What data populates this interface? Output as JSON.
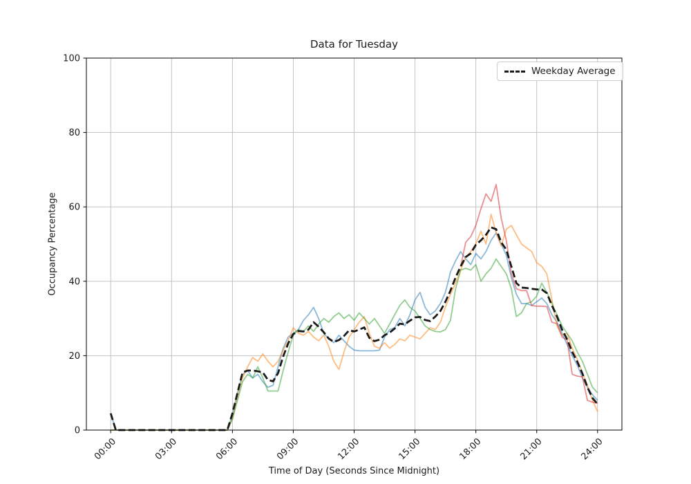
{
  "figure": {
    "background": "#ffffff",
    "grid_color": "#bbbbbb",
    "spine_color": "#000000",
    "text_color": "#1a1a1a"
  },
  "chart_data": {
    "type": "line",
    "title": "Data for Tuesday",
    "xlabel": "Time of Day (Seconds Since Midnight)",
    "ylabel": "Occupancy Percentage",
    "xlim_seconds": [
      -4320,
      90720
    ],
    "ylim": [
      0,
      100
    ],
    "grid": true,
    "x_start_seconds": 0,
    "x_step_seconds": 900,
    "xticks": {
      "seconds": [
        0,
        10800,
        21600,
        32400,
        43200,
        54000,
        64800,
        75600,
        86400
      ],
      "labels": [
        "00:00",
        "03:00",
        "06:00",
        "09:00",
        "12:00",
        "15:00",
        "18:00",
        "21:00",
        "24:00"
      ],
      "rotation_deg": 45
    },
    "yticks": [
      0,
      20,
      40,
      60,
      80,
      100
    ],
    "legend": {
      "position": "upper right",
      "entries": [
        {
          "label": "Weekday Average",
          "style": "dashed",
          "color": "#1a1a1a"
        }
      ]
    },
    "series": [
      {
        "name": "weekday-line-1",
        "color": "#1f77b4",
        "opacity": 0.52,
        "width": 1.8,
        "dash": null,
        "values": [
          4.5,
          0,
          0,
          0,
          0,
          0,
          0,
          0,
          0,
          0,
          0,
          0,
          0,
          0,
          0,
          0,
          0,
          0,
          0,
          0,
          0,
          0,
          0,
          0,
          4,
          10,
          15,
          16,
          14,
          15,
          13,
          11.5,
          12,
          17,
          22,
          25,
          26,
          27,
          29.5,
          31,
          33,
          30,
          26,
          24.5,
          23.5,
          25.5,
          24,
          22.5,
          21.5,
          21.3,
          21.3,
          21.3,
          21.3,
          21.5,
          25,
          27,
          27.5,
          30,
          28,
          31,
          35,
          37,
          33,
          31,
          32,
          34,
          37,
          42.5,
          45.5,
          48,
          46,
          44.5,
          47.5,
          46,
          48,
          51,
          53,
          50,
          47,
          41,
          36.5,
          34,
          34,
          33.5,
          34.5,
          35.5,
          34,
          31,
          29,
          26,
          23,
          20,
          17.5,
          14,
          11.5,
          9.5,
          8
        ]
      },
      {
        "name": "weekday-line-2",
        "color": "#ff7f0e",
        "opacity": 0.52,
        "width": 1.8,
        "dash": null,
        "values": [
          0,
          0,
          0,
          0,
          0,
          0,
          0,
          0,
          0,
          0,
          0,
          0,
          0,
          0,
          0,
          0,
          0,
          0,
          0,
          0,
          0,
          0,
          0,
          0,
          3,
          9,
          14,
          17,
          19.5,
          18.5,
          20.5,
          18.5,
          17,
          18.5,
          21.5,
          24,
          27.5,
          26,
          25.5,
          26.5,
          25,
          24,
          25.5,
          22.5,
          18.5,
          16.3,
          21,
          25,
          27,
          29,
          30.5,
          26,
          22.5,
          22,
          23.5,
          22,
          23,
          24.5,
          24,
          25.5,
          25,
          24.5,
          26,
          27.5,
          27,
          29,
          33,
          36.5,
          39.5,
          43,
          46.5,
          48,
          50,
          53.5,
          50,
          58,
          53,
          49.5,
          54,
          55,
          52.5,
          50,
          49,
          48,
          45,
          44,
          42,
          35,
          28,
          25.5,
          26,
          22,
          19,
          15.5,
          12,
          8,
          5
        ]
      },
      {
        "name": "weekday-line-3",
        "color": "#2ca02c",
        "opacity": 0.52,
        "width": 1.8,
        "dash": null,
        "values": [
          0,
          0,
          0,
          0,
          0,
          0,
          0,
          0,
          0,
          0,
          0,
          0,
          0,
          0,
          0,
          0,
          0,
          0,
          0,
          0,
          0,
          0,
          0,
          0,
          3,
          8,
          13,
          15,
          14,
          17,
          14,
          10.5,
          10.5,
          10.5,
          16,
          21,
          25.5,
          27,
          26.5,
          28,
          26.5,
          28.5,
          30,
          29,
          30.5,
          31.5,
          30,
          31,
          29.5,
          31.5,
          30,
          28.5,
          30,
          28,
          26,
          28.5,
          31,
          33.5,
          35,
          33,
          32,
          30,
          28,
          27,
          26.5,
          26.4,
          27,
          29.5,
          38,
          43,
          43.5,
          43,
          44.5,
          40,
          42,
          43.5,
          46,
          44,
          42,
          38,
          30.5,
          31.5,
          34,
          34.5,
          36,
          39.5,
          37,
          34,
          31,
          28,
          26,
          24,
          21,
          18.5,
          15,
          11.5,
          10
        ]
      },
      {
        "name": "weekday-line-4",
        "color": "#d62728",
        "opacity": 0.52,
        "width": 1.8,
        "dash": null,
        "values": [
          null,
          null,
          null,
          null,
          null,
          null,
          null,
          null,
          null,
          null,
          null,
          null,
          null,
          null,
          null,
          null,
          null,
          null,
          null,
          null,
          null,
          null,
          null,
          null,
          null,
          null,
          null,
          null,
          null,
          null,
          null,
          null,
          null,
          null,
          null,
          null,
          null,
          null,
          null,
          null,
          null,
          null,
          null,
          null,
          null,
          null,
          null,
          null,
          null,
          null,
          null,
          null,
          null,
          null,
          null,
          null,
          null,
          null,
          null,
          null,
          null,
          null,
          null,
          null,
          null,
          null,
          null,
          null,
          null,
          44,
          50.5,
          52,
          55,
          59.5,
          63.5,
          61.5,
          66,
          57,
          51,
          42,
          38,
          37.5,
          37.5,
          33.5,
          33.3,
          33.3,
          33.2,
          29,
          28.6,
          25,
          24.2,
          15,
          14.5,
          14.3,
          8,
          7.5,
          7.2
        ]
      },
      {
        "name": "Weekday Average",
        "color": "#1a1a1a",
        "opacity": 1,
        "width": 2.8,
        "dash": "10 4.5",
        "values": [
          4.5,
          0,
          0,
          0,
          0,
          0,
          0,
          0,
          0,
          0,
          0,
          0,
          0,
          0,
          0,
          0,
          0,
          0,
          0,
          0,
          0,
          0,
          0,
          0,
          4.5,
          10,
          15.5,
          16,
          16,
          15.8,
          15.5,
          13.5,
          13.1,
          15.3,
          19.8,
          23.3,
          25.8,
          26.6,
          26.5,
          27,
          29,
          27.8,
          26.3,
          24.6,
          23.7,
          24.2,
          25.3,
          26.8,
          26.5,
          27,
          27.6,
          24.8,
          23.9,
          24.3,
          25.5,
          26.2,
          27.3,
          28.6,
          28.4,
          29.4,
          30.3,
          30.4,
          29.6,
          29.3,
          30.5,
          32,
          34.5,
          37.5,
          41,
          44,
          46.5,
          47.5,
          49.8,
          51,
          52.5,
          54.5,
          54,
          50.5,
          48.5,
          44,
          39.5,
          38.3,
          38.2,
          38,
          37.8,
          37.8,
          36.8,
          33.5,
          30.5,
          27,
          24.4,
          21,
          18.4,
          15.2,
          11.5,
          8.6,
          7
        ]
      }
    ]
  }
}
